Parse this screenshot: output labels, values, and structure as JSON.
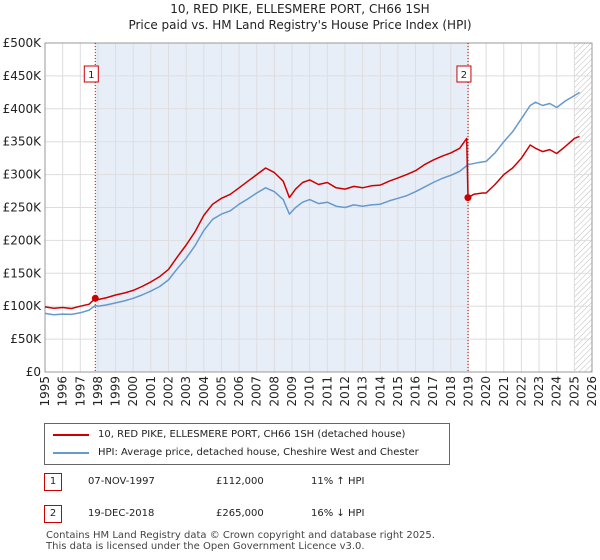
{
  "chart_data": {
    "type": "line",
    "title": "10, RED PIKE, ELLESMERE PORT, CH66 1SH",
    "subtitle": "Price paid vs. HM Land Registry's House Price Index (HPI)",
    "xlabel": "",
    "ylabel": "",
    "xlim": [
      1995,
      2026
    ],
    "ylim": [
      0,
      500000
    ],
    "xticks": [
      "1995",
      "1996",
      "1997",
      "1998",
      "1999",
      "2000",
      "2001",
      "2002",
      "2003",
      "2004",
      "2005",
      "2006",
      "2007",
      "2008",
      "2009",
      "2010",
      "2011",
      "2012",
      "2013",
      "2014",
      "2015",
      "2016",
      "2017",
      "2018",
      "2019",
      "2020",
      "2021",
      "2022",
      "2023",
      "2024",
      "2025",
      "2026"
    ],
    "yticks": [
      {
        "value": 0,
        "label": "£0"
      },
      {
        "value": 50000,
        "label": "£50K"
      },
      {
        "value": 100000,
        "label": "£100K"
      },
      {
        "value": 150000,
        "label": "£150K"
      },
      {
        "value": 200000,
        "label": "£200K"
      },
      {
        "value": 250000,
        "label": "£250K"
      },
      {
        "value": 300000,
        "label": "£300K"
      },
      {
        "value": 350000,
        "label": "£350K"
      },
      {
        "value": 400000,
        "label": "£400K"
      },
      {
        "value": 450000,
        "label": "£450K"
      },
      {
        "value": 500000,
        "label": "£500K"
      }
    ],
    "grid": true,
    "shaded_range": [
      1997.85,
      2018.97
    ],
    "forecast_from": 2025.0,
    "series": [
      {
        "name": "10, RED PIKE, ELLESMERE PORT, CH66 1SH (detached house)",
        "color": "#cc0000",
        "points": [
          [
            1995.0,
            99000
          ],
          [
            1995.5,
            97000
          ],
          [
            1996.0,
            98000
          ],
          [
            1996.5,
            96500
          ],
          [
            1997.0,
            100000
          ],
          [
            1997.5,
            103000
          ],
          [
            1997.85,
            112000
          ],
          [
            1998.0,
            110000
          ],
          [
            1998.5,
            113000
          ],
          [
            1999.0,
            117000
          ],
          [
            1999.5,
            120000
          ],
          [
            2000.0,
            124000
          ],
          [
            2000.5,
            130000
          ],
          [
            2001.0,
            137000
          ],
          [
            2001.5,
            145000
          ],
          [
            2002.0,
            156000
          ],
          [
            2002.5,
            175000
          ],
          [
            2003.0,
            193000
          ],
          [
            2003.5,
            213000
          ],
          [
            2004.0,
            238000
          ],
          [
            2004.5,
            255000
          ],
          [
            2005.0,
            264000
          ],
          [
            2005.5,
            270000
          ],
          [
            2006.0,
            280000
          ],
          [
            2006.5,
            290000
          ],
          [
            2007.0,
            300000
          ],
          [
            2007.5,
            310000
          ],
          [
            2008.0,
            303000
          ],
          [
            2008.5,
            290000
          ],
          [
            2008.85,
            265000
          ],
          [
            2009.2,
            278000
          ],
          [
            2009.6,
            288000
          ],
          [
            2010.0,
            292000
          ],
          [
            2010.5,
            285000
          ],
          [
            2011.0,
            288000
          ],
          [
            2011.5,
            280000
          ],
          [
            2012.0,
            278000
          ],
          [
            2012.5,
            282000
          ],
          [
            2013.0,
            280000
          ],
          [
            2013.5,
            283000
          ],
          [
            2014.0,
            284000
          ],
          [
            2014.5,
            290000
          ],
          [
            2015.0,
            295000
          ],
          [
            2015.5,
            300000
          ],
          [
            2016.0,
            306000
          ],
          [
            2016.5,
            315000
          ],
          [
            2017.0,
            322000
          ],
          [
            2017.5,
            328000
          ],
          [
            2018.0,
            333000
          ],
          [
            2018.5,
            340000
          ],
          [
            2018.9,
            355000
          ],
          [
            2018.97,
            265000
          ],
          [
            2019.3,
            270000
          ],
          [
            2019.8,
            272000
          ],
          [
            2020.0,
            272000
          ],
          [
            2020.5,
            285000
          ],
          [
            2021.0,
            300000
          ],
          [
            2021.5,
            310000
          ],
          [
            2022.0,
            325000
          ],
          [
            2022.5,
            345000
          ],
          [
            2022.8,
            340000
          ],
          [
            2023.2,
            335000
          ],
          [
            2023.6,
            338000
          ],
          [
            2024.0,
            332000
          ],
          [
            2024.5,
            343000
          ],
          [
            2025.0,
            355000
          ],
          [
            2025.3,
            358000
          ]
        ]
      },
      {
        "name": "HPI: Average price, detached house, Cheshire West and Chester",
        "color": "#6699cc",
        "points": [
          [
            1995.0,
            89000
          ],
          [
            1995.5,
            87000
          ],
          [
            1996.0,
            88000
          ],
          [
            1996.5,
            87500
          ],
          [
            1997.0,
            90000
          ],
          [
            1997.5,
            94000
          ],
          [
            1997.85,
            101000
          ],
          [
            1998.0,
            100000
          ],
          [
            1998.5,
            102000
          ],
          [
            1999.0,
            105000
          ],
          [
            1999.5,
            108000
          ],
          [
            2000.0,
            112000
          ],
          [
            2000.5,
            117000
          ],
          [
            2001.0,
            123000
          ],
          [
            2001.5,
            130000
          ],
          [
            2002.0,
            140000
          ],
          [
            2002.5,
            157000
          ],
          [
            2003.0,
            173000
          ],
          [
            2003.5,
            192000
          ],
          [
            2004.0,
            215000
          ],
          [
            2004.5,
            232000
          ],
          [
            2005.0,
            240000
          ],
          [
            2005.5,
            245000
          ],
          [
            2006.0,
            255000
          ],
          [
            2006.5,
            263000
          ],
          [
            2007.0,
            272000
          ],
          [
            2007.5,
            280000
          ],
          [
            2008.0,
            274000
          ],
          [
            2008.5,
            262000
          ],
          [
            2008.85,
            240000
          ],
          [
            2009.2,
            250000
          ],
          [
            2009.6,
            258000
          ],
          [
            2010.0,
            262000
          ],
          [
            2010.5,
            256000
          ],
          [
            2011.0,
            258000
          ],
          [
            2011.5,
            252000
          ],
          [
            2012.0,
            250000
          ],
          [
            2012.5,
            254000
          ],
          [
            2013.0,
            252000
          ],
          [
            2013.5,
            254000
          ],
          [
            2014.0,
            255000
          ],
          [
            2014.5,
            260000
          ],
          [
            2015.0,
            264000
          ],
          [
            2015.5,
            268000
          ],
          [
            2016.0,
            274000
          ],
          [
            2016.5,
            281000
          ],
          [
            2017.0,
            288000
          ],
          [
            2017.5,
            294000
          ],
          [
            2018.0,
            299000
          ],
          [
            2018.5,
            305000
          ],
          [
            2018.97,
            315000
          ],
          [
            2019.5,
            318000
          ],
          [
            2020.0,
            320000
          ],
          [
            2020.5,
            333000
          ],
          [
            2021.0,
            350000
          ],
          [
            2021.5,
            365000
          ],
          [
            2022.0,
            385000
          ],
          [
            2022.5,
            405000
          ],
          [
            2022.8,
            410000
          ],
          [
            2023.2,
            405000
          ],
          [
            2023.6,
            408000
          ],
          [
            2024.0,
            402000
          ],
          [
            2024.5,
            412000
          ],
          [
            2025.0,
            420000
          ],
          [
            2025.3,
            425000
          ]
        ]
      }
    ],
    "markers": [
      {
        "label": "1",
        "x": 1997.85,
        "y": 112000
      },
      {
        "label": "2",
        "x": 2018.97,
        "y": 265000
      }
    ]
  },
  "legend": {
    "items": [
      {
        "label": "10, RED PIKE, ELLESMERE PORT, CH66 1SH (detached house)",
        "color": "#cc0000"
      },
      {
        "label": "HPI: Average price, detached house, Cheshire West and Chester",
        "color": "#6699cc"
      }
    ]
  },
  "transactions": [
    {
      "num": "1",
      "date": "07-NOV-1997",
      "price": "£112,000",
      "hpi": "11% ↑ HPI"
    },
    {
      "num": "2",
      "date": "19-DEC-2018",
      "price": "£265,000",
      "hpi": "16% ↓ HPI"
    }
  ],
  "footer": {
    "line1": "Contains HM Land Registry data © Crown copyright and database right 2025.",
    "line2": "This data is licensed under the Open Government Licence v3.0."
  }
}
